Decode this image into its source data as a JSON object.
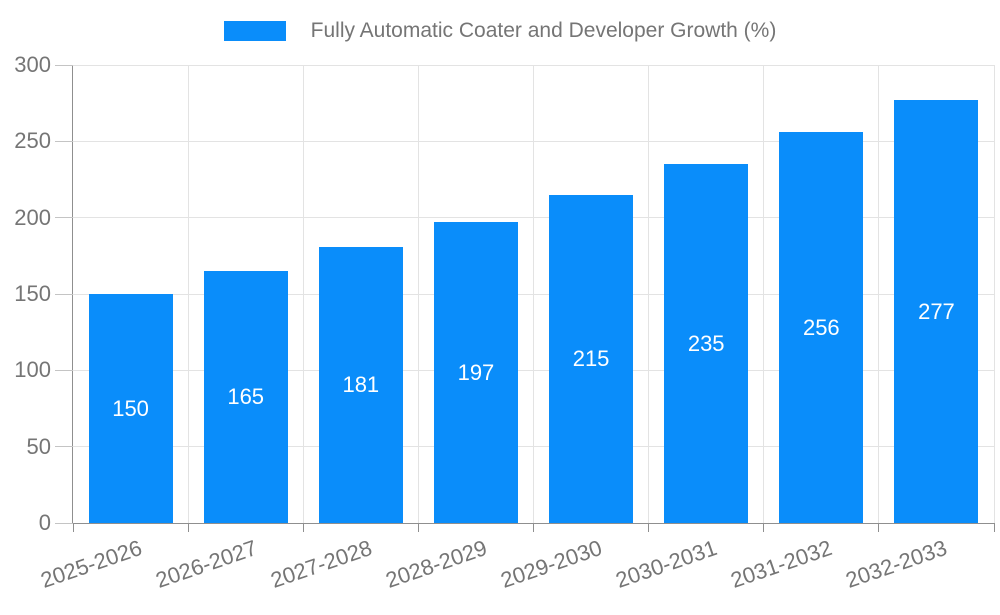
{
  "legend": {
    "label": "Fully Automatic Coater and Developer Growth (%)"
  },
  "colors": {
    "bar": "#0a8dfa",
    "axis": "#8f8f8f",
    "grid": "#e3e3e3",
    "ytick": "#c4c4c4",
    "text": "#757575",
    "value_text": "#ffffff"
  },
  "chart_data": {
    "type": "bar",
    "title": "Fully Automatic Coater and Developer Growth (%)",
    "categories": [
      "2025-2026",
      "2026-2027",
      "2027-2028",
      "2028-2029",
      "2029-2030",
      "2030-2031",
      "2031-2032",
      "2032-2033"
    ],
    "values": [
      150,
      165,
      181,
      197,
      215,
      235,
      256,
      277
    ],
    "xlabel": "",
    "ylabel": "",
    "ylim": [
      0,
      300
    ],
    "yticks": [
      0,
      50,
      100,
      150,
      200,
      250,
      300
    ],
    "grid": true,
    "legend_position": "top",
    "value_labels": "inside-center",
    "xtick_rotation_deg": -19
  }
}
